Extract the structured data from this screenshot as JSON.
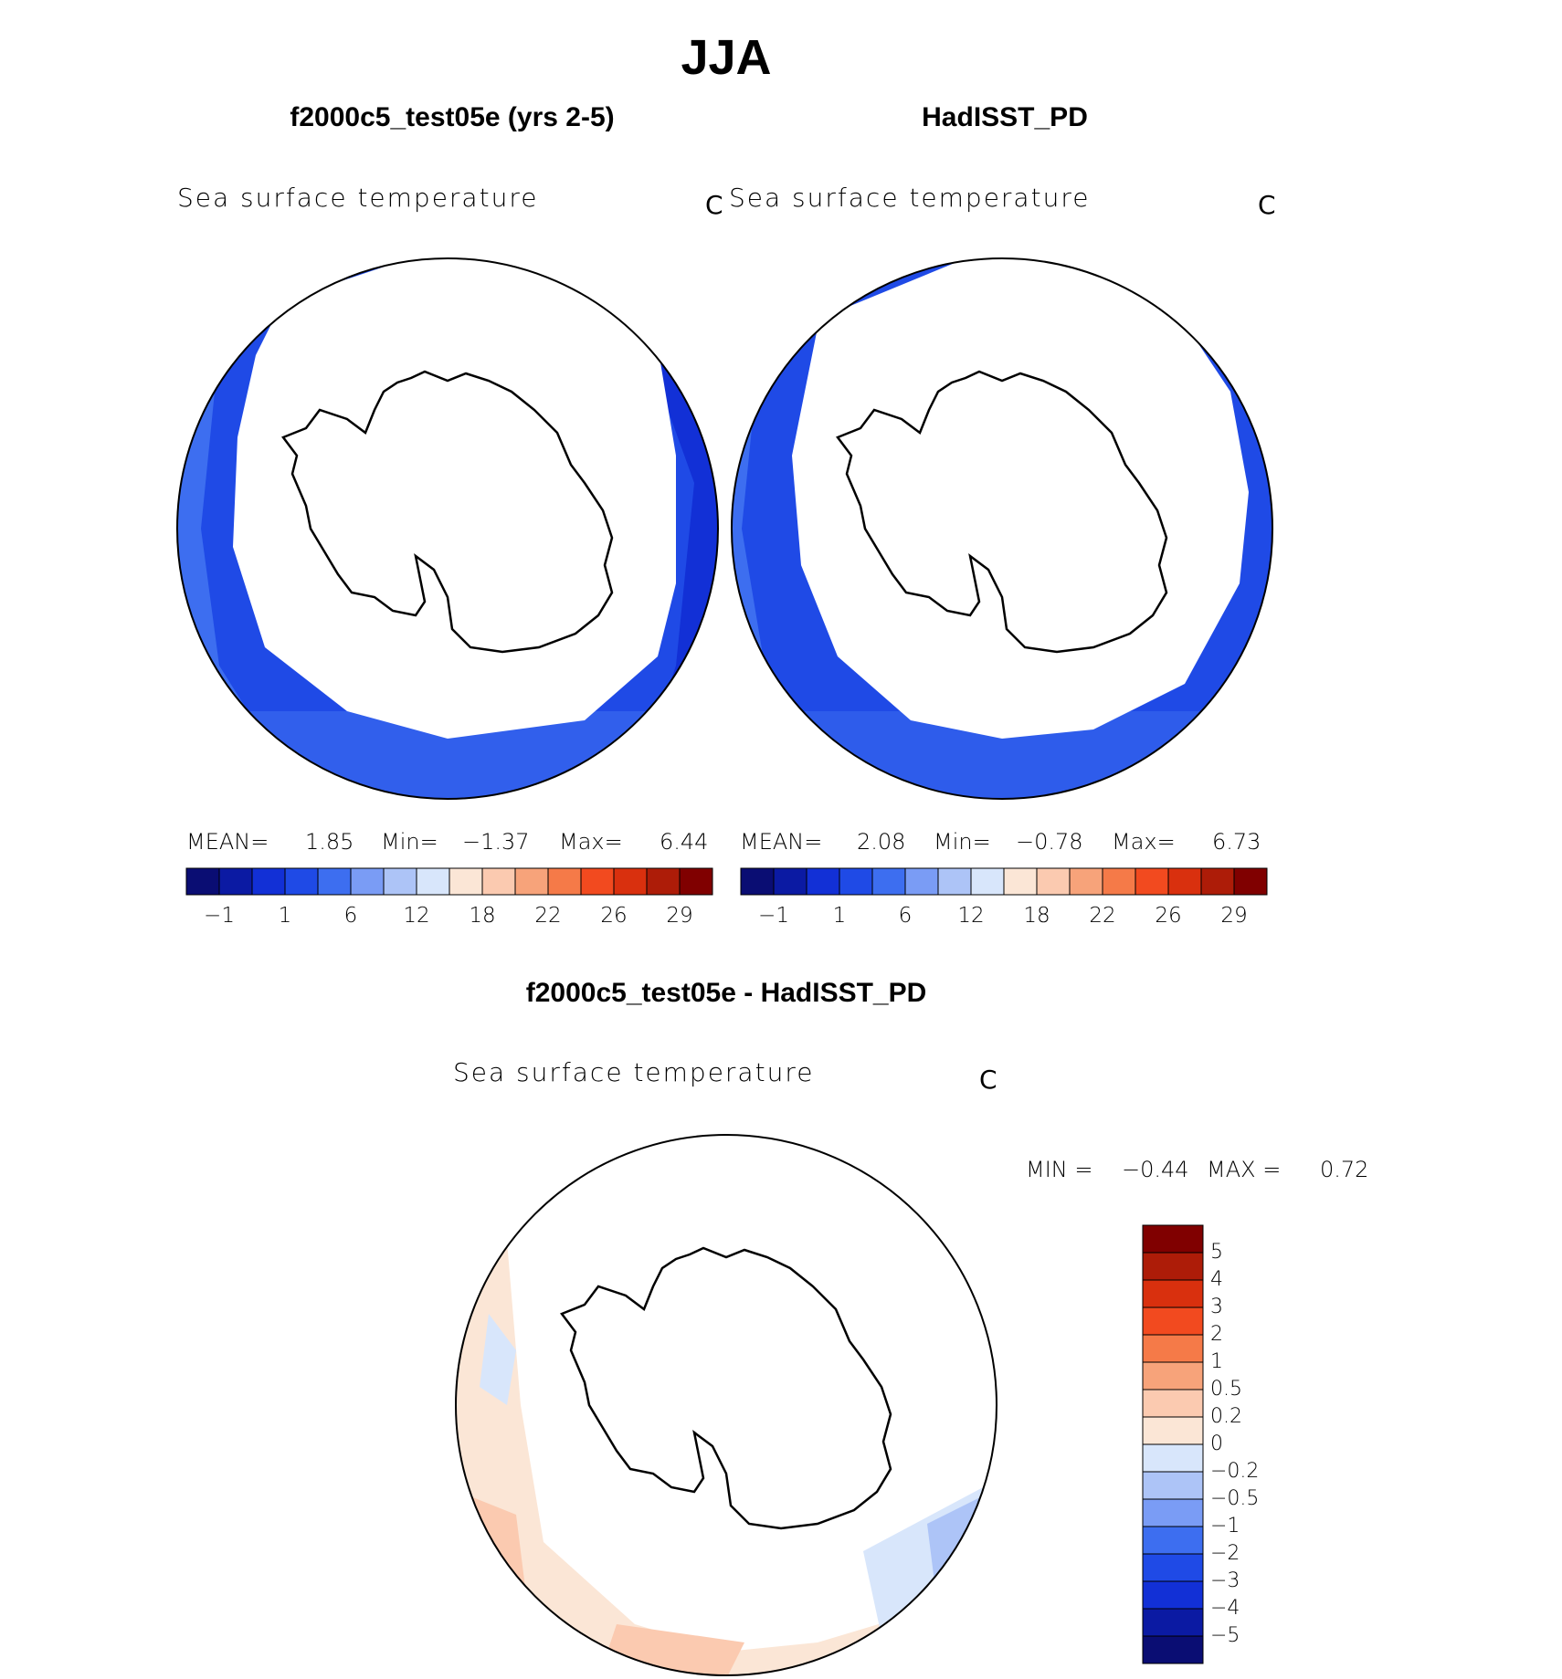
{
  "figure_title": "JJA",
  "panels": [
    {
      "title": "f2000c5_test05e (yrs 2-5)",
      "variable": "Sea surface temperature",
      "units": "C",
      "stats": {
        "mean_label": "MEAN=",
        "mean": "1.85",
        "min_label": "Min=",
        "min": "−1.37",
        "max_label": "Max=",
        "max": "6.44"
      }
    },
    {
      "title": "HadISST_PD",
      "variable": "Sea surface temperature",
      "units": "C",
      "stats": {
        "mean_label": "MEAN=",
        "mean": "2.08",
        "min_label": "Min=",
        "min": "−0.78",
        "max_label": "Max=",
        "max": "6.73"
      }
    },
    {
      "title": "f2000c5_test05e - HadISST_PD",
      "variable": "Sea surface temperature",
      "units": "C",
      "stats": {
        "min_label": "MIN =",
        "min": "−0.44",
        "max_label": "MAX =",
        "max": "0.72"
      }
    }
  ],
  "colorbar_abs": {
    "colors": [
      "#0a0d73",
      "#0b1aa3",
      "#1230d6",
      "#1f4ae6",
      "#3d6ef0",
      "#7a9cf5",
      "#adc4f7",
      "#d8e6fb",
      "#fbe6d6",
      "#fbcab0",
      "#f7a37a",
      "#f57a48",
      "#f24a1f",
      "#d9300e",
      "#ad1c08",
      "#800000"
    ],
    "tick_labels": [
      "−1",
      "1",
      "6",
      "12",
      "18",
      "22",
      "26",
      "29"
    ]
  },
  "colorbar_diff": {
    "colors": [
      "#0a0d73",
      "#0b1aa3",
      "#1230d6",
      "#1f4ae6",
      "#3d6ef0",
      "#7a9cf5",
      "#adc4f7",
      "#d8e6fb",
      "#fbe6d6",
      "#fbcab0",
      "#f7a37a",
      "#f57a48",
      "#f24a1f",
      "#d9300e",
      "#ad1c08",
      "#800000"
    ],
    "tick_labels": [
      "5",
      "4",
      "3",
      "2",
      "1",
      "0.5",
      "0.2",
      "0",
      "−0.2",
      "−0.5",
      "−1",
      "−2",
      "−3",
      "−4",
      "−5"
    ]
  }
}
